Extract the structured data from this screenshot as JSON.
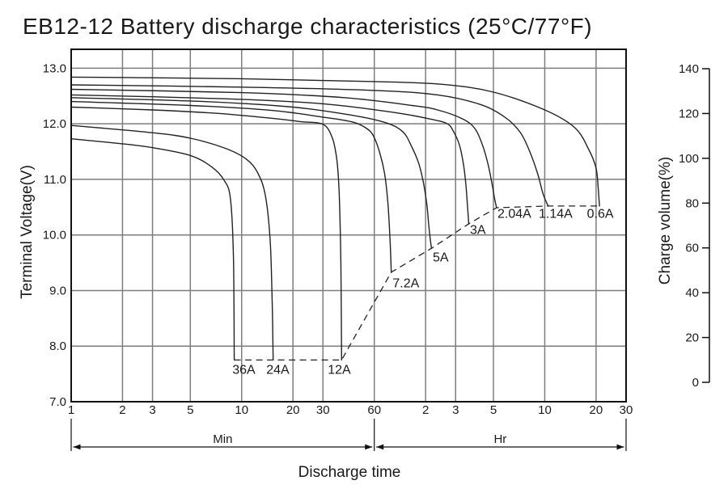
{
  "title": "EB12-12 Battery discharge characteristics (25°C/77°F)",
  "colors": {
    "curve": "#222222",
    "grid": "#7d7d7d",
    "border": "#111111",
    "dashed_cutoff": "#222222",
    "text": "#1a1a1a",
    "background": "#ffffff"
  },
  "chart_data": {
    "type": "line",
    "title": "EB12-12 Battery discharge characteristics (25°C/77°F)",
    "xlabel": "Discharge time",
    "ylabel": "Terminal Voltage(V)",
    "y2label": "Charge volume(%)",
    "x_axis": {
      "label": "Discharge time",
      "scale": "log",
      "range_minutes": [
        1,
        1800
      ],
      "unit_groups": [
        {
          "label": "Min",
          "from_t": 1,
          "to_t": 60
        },
        {
          "label": "Hr",
          "from_t": 60,
          "to_t": 1800
        }
      ],
      "ticks": [
        {
          "label": "1",
          "t": 1
        },
        {
          "label": "2",
          "t": 2
        },
        {
          "label": "3",
          "t": 3
        },
        {
          "label": "5",
          "t": 5
        },
        {
          "label": "10",
          "t": 10
        },
        {
          "label": "20",
          "t": 20
        },
        {
          "label": "30",
          "t": 30
        },
        {
          "label": "60",
          "t": 60
        },
        {
          "label": "2",
          "t": 120
        },
        {
          "label": "3",
          "t": 180
        },
        {
          "label": "5",
          "t": 300
        },
        {
          "label": "10",
          "t": 600
        },
        {
          "label": "20",
          "t": 1200
        },
        {
          "label": "30",
          "t": 1800
        }
      ]
    },
    "y_axis": {
      "label": "Terminal Voltage(V)",
      "ylim": [
        7.0,
        13.0
      ],
      "ticks": [
        {
          "label": "13.0",
          "v": 13.0
        },
        {
          "label": "12.0",
          "v": 12.0
        },
        {
          "label": "11.0",
          "v": 11.0
        },
        {
          "label": "10.0",
          "v": 10.0
        },
        {
          "label": "9.0",
          "v": 9.0
        },
        {
          "label": "8.0",
          "v": 8.0
        },
        {
          "label": "7.0",
          "v": 7.0
        }
      ],
      "gridlines_v": [
        13,
        12,
        11,
        10,
        9,
        8
      ]
    },
    "y2_axis": {
      "label": "Charge volume(%)",
      "ylim": [
        0,
        140
      ],
      "ticks": [
        "140",
        "120",
        "100",
        "80",
        "60",
        "40",
        "20",
        "0"
      ]
    },
    "series": [
      {
        "name": "0.6A",
        "discharge_current_A": 0.6,
        "label_pos": {
          "t": 1270,
          "v": 10.39
        },
        "points": [
          [
            1,
            12.84
          ],
          [
            10,
            12.81
          ],
          [
            60,
            12.76
          ],
          [
            150,
            12.71
          ],
          [
            300,
            12.57
          ],
          [
            600,
            12.25
          ],
          [
            900,
            11.93
          ],
          [
            1090,
            11.53
          ],
          [
            1200,
            11.2
          ],
          [
            1235,
            10.85
          ],
          [
            1256,
            10.52
          ]
        ]
      },
      {
        "name": "1.14A",
        "discharge_current_A": 1.14,
        "label_pos": {
          "t": 695,
          "v": 10.39
        },
        "points": [
          [
            1,
            12.7
          ],
          [
            10,
            12.66
          ],
          [
            60,
            12.6
          ],
          [
            141,
            12.52
          ],
          [
            250,
            12.35
          ],
          [
            350,
            12.12
          ],
          [
            430,
            11.85
          ],
          [
            490,
            11.5
          ],
          [
            545,
            11.1
          ],
          [
            585,
            10.75
          ],
          [
            615,
            10.58
          ],
          [
            630,
            10.52
          ]
        ]
      },
      {
        "name": "2.04A",
        "discharge_current_A": 2.04,
        "label_pos": {
          "t": 398,
          "v": 10.39
        },
        "points": [
          [
            1,
            12.62
          ],
          [
            10,
            12.56
          ],
          [
            40,
            12.47
          ],
          [
            100,
            12.33
          ],
          [
            141,
            12.25
          ],
          [
            200,
            12.08
          ],
          [
            235,
            11.9
          ],
          [
            260,
            11.6
          ],
          [
            280,
            11.25
          ],
          [
            295,
            10.9
          ],
          [
            305,
            10.65
          ],
          [
            313,
            10.49
          ]
        ]
      },
      {
        "name": "3A",
        "discharge_current_A": 3,
        "label_pos": {
          "t": 243,
          "v": 10.1
        },
        "points": [
          [
            1,
            12.52
          ],
          [
            8,
            12.45
          ],
          [
            30,
            12.36
          ],
          [
            80,
            12.2
          ],
          [
            130,
            12.08
          ],
          [
            161,
            12.0
          ],
          [
            175,
            11.86
          ],
          [
            189,
            11.63
          ],
          [
            199,
            11.32
          ],
          [
            206,
            10.96
          ],
          [
            211,
            10.55
          ],
          [
            215,
            10.2
          ]
        ]
      },
      {
        "name": "5A",
        "discharge_current_A": 5,
        "label_pos": {
          "t": 147,
          "v": 9.6
        },
        "points": [
          [
            1,
            12.47
          ],
          [
            6,
            12.4
          ],
          [
            20,
            12.3
          ],
          [
            45,
            12.15
          ],
          [
            70,
            12.02
          ],
          [
            88,
            11.86
          ],
          [
            99,
            11.6
          ],
          [
            109,
            11.3
          ],
          [
            116,
            10.97
          ],
          [
            122,
            10.55
          ],
          [
            125,
            10.2
          ],
          [
            128,
            9.9
          ],
          [
            130,
            9.76
          ]
        ]
      },
      {
        "name": "7.2A",
        "discharge_current_A": 7.2,
        "label_pos": {
          "t": 92,
          "v": 9.14
        },
        "points": [
          [
            1,
            12.4
          ],
          [
            5,
            12.33
          ],
          [
            15,
            12.24
          ],
          [
            30,
            12.12
          ],
          [
            45,
            12.03
          ],
          [
            55,
            11.9
          ],
          [
            60,
            11.75
          ],
          [
            65,
            11.45
          ],
          [
            69,
            11.1
          ],
          [
            72,
            10.6
          ],
          [
            74,
            10.0
          ],
          [
            75,
            9.6
          ],
          [
            75.5,
            9.33
          ]
        ]
      },
      {
        "name": "12A",
        "discharge_current_A": 12,
        "label_pos": {
          "t": 37.4,
          "v": 7.58
        },
        "points": [
          [
            1,
            12.3
          ],
          [
            3,
            12.25
          ],
          [
            7,
            12.19
          ],
          [
            15,
            12.1
          ],
          [
            22,
            12.04
          ],
          [
            30,
            11.99
          ],
          [
            34,
            11.75
          ],
          [
            36,
            11.4
          ],
          [
            37,
            11.0
          ],
          [
            37.6,
            10.5
          ],
          [
            38.2,
            9.5
          ],
          [
            38.6,
            7.75
          ]
        ]
      },
      {
        "name": "24A",
        "discharge_current_A": 24,
        "label_pos": {
          "t": 16.3,
          "v": 7.58
        },
        "points": [
          [
            1,
            11.97
          ],
          [
            3,
            11.84
          ],
          [
            5,
            11.74
          ],
          [
            8,
            11.56
          ],
          [
            10.7,
            11.36
          ],
          [
            12.5,
            11.1
          ],
          [
            13.8,
            10.7
          ],
          [
            14.7,
            9.9
          ],
          [
            15.1,
            8.8
          ],
          [
            15.3,
            7.75
          ]
        ]
      },
      {
        "name": "36A",
        "discharge_current_A": 36,
        "label_pos": {
          "t": 10.3,
          "v": 7.58
        },
        "points": [
          [
            1,
            11.73
          ],
          [
            2,
            11.64
          ],
          [
            3,
            11.57
          ],
          [
            5,
            11.43
          ],
          [
            6.7,
            11.22
          ],
          [
            7.9,
            10.98
          ],
          [
            8.6,
            10.65
          ],
          [
            8.95,
            9.6
          ],
          [
            9.05,
            7.75
          ]
        ]
      }
    ],
    "cutoff_line": {
      "style": "dashed",
      "points": [
        [
          9.05,
          7.75
        ],
        [
          15.3,
          7.75
        ],
        [
          38.6,
          7.75
        ],
        [
          75.5,
          9.33
        ],
        [
          130,
          9.76
        ],
        [
          215,
          10.2
        ],
        [
          313,
          10.49
        ],
        [
          630,
          10.52
        ],
        [
          1256,
          10.52
        ]
      ]
    },
    "legend_position": "none",
    "grid": true
  }
}
